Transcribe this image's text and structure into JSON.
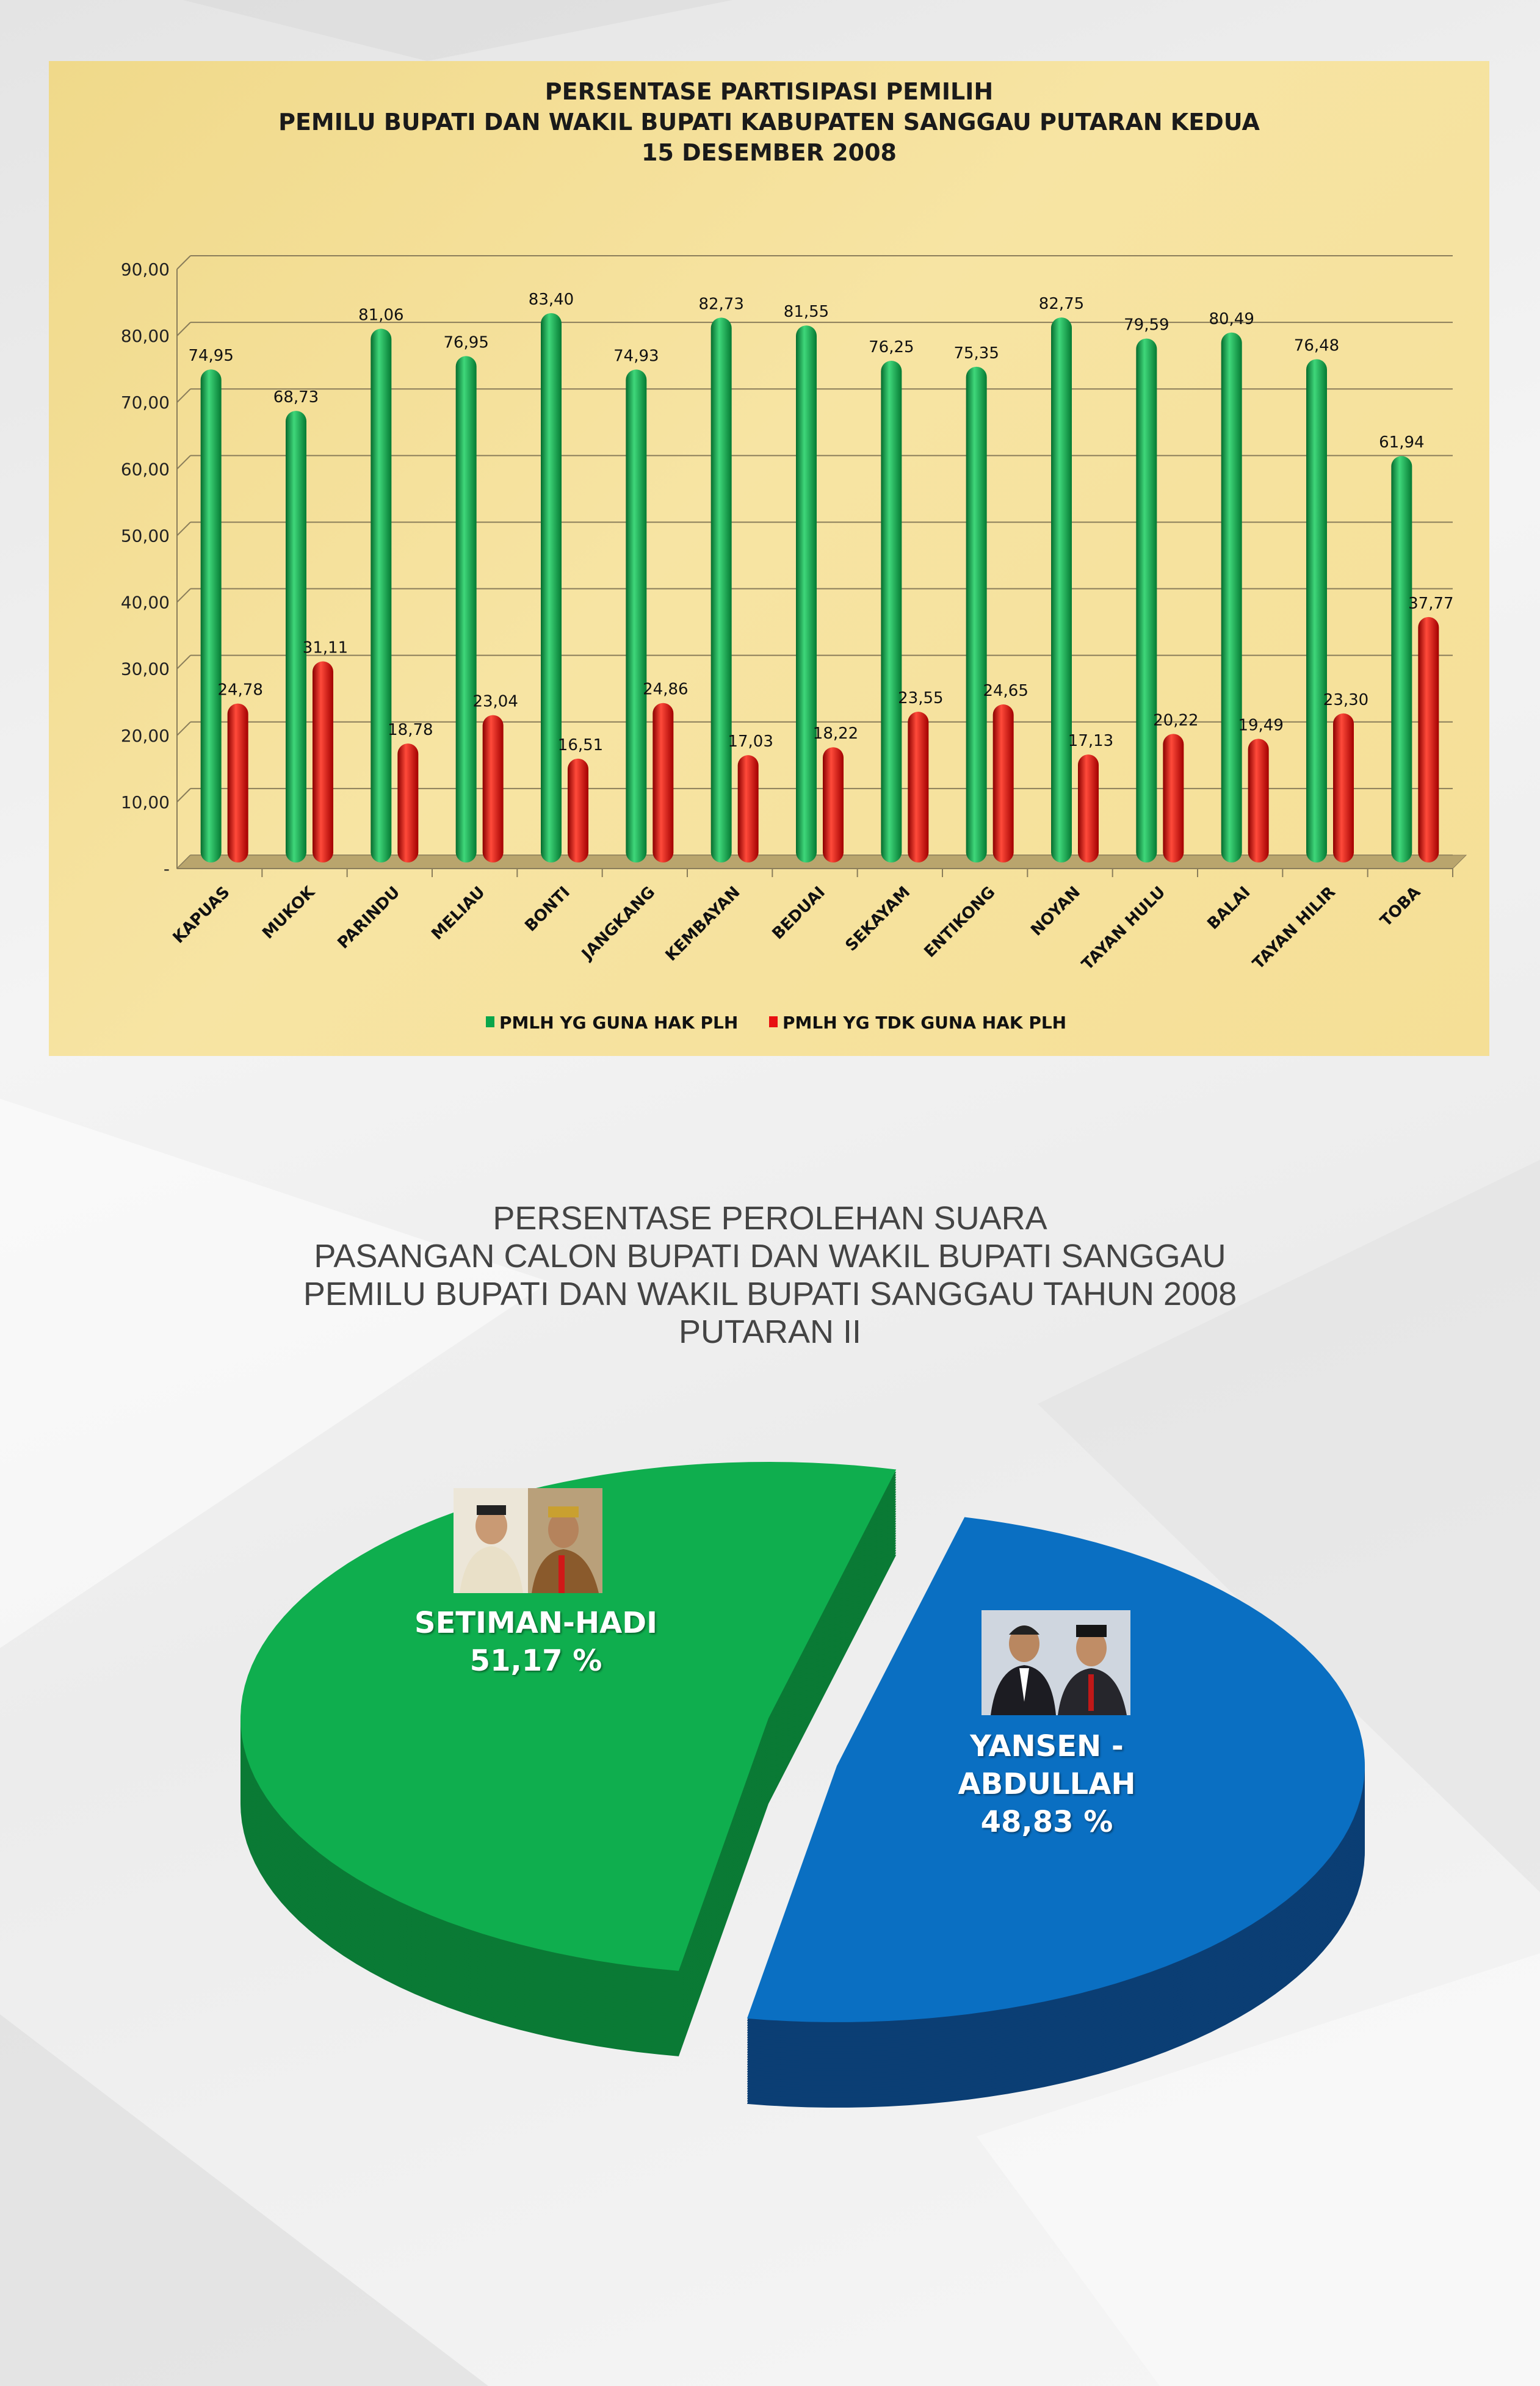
{
  "chart_data": [
    {
      "type": "bar",
      "title": "PERSENTASE PARTISIPASI PEMILIH",
      "subtitle": [
        "PEMILU BUPATI DAN WAKIL BUPATI KABUPATEN SANGGAU PUTARAN KEDUA",
        "15 DESEMBER 2008"
      ],
      "categories": [
        "KAPUAS",
        "MUKOK",
        "PARINDU",
        "MELIAU",
        "BONTI",
        "JANGKANG",
        "KEMBAYAN",
        "BEDUAI",
        "SEKAYAM",
        "ENTIKONG",
        "NOYAN",
        "TAYAN HULU",
        "BALAI",
        "TAYAN HILIR",
        "TOBA"
      ],
      "series": [
        {
          "name": "PMLH YG GUNA HAK PLH",
          "color": "#0aa64a",
          "values": [
            74.95,
            68.73,
            81.06,
            76.95,
            83.4,
            74.93,
            82.73,
            81.55,
            76.25,
            75.35,
            82.75,
            79.59,
            80.49,
            76.48,
            61.94
          ],
          "labels": [
            "74,95",
            "68,73",
            "81,06",
            "76,95",
            "83,40",
            "74,93",
            "82,73",
            "81,55",
            "76,25",
            "75,35",
            "82,75",
            "79,59",
            "80,49",
            "76,48",
            "61,94"
          ]
        },
        {
          "name": "PMLH YG TDK GUNA HAK PLH",
          "color": "#e81010",
          "values": [
            24.78,
            31.11,
            18.78,
            23.04,
            16.51,
            24.86,
            17.03,
            18.22,
            23.55,
            24.65,
            17.13,
            20.22,
            19.49,
            23.3,
            37.77
          ],
          "labels": [
            "24,78",
            "31,11",
            "18,78",
            "23,04",
            "16,51",
            "24,86",
            "17,03",
            "18,22",
            "23,55",
            "24,65",
            "17,13",
            "20,22",
            "19,49",
            "23,30",
            "37,77"
          ]
        }
      ],
      "yticks": [
        "-",
        "10,00",
        "20,00",
        "30,00",
        "40,00",
        "50,00",
        "60,00",
        "70,00",
        "80,00",
        "90,00"
      ],
      "ylim": [
        0,
        90
      ],
      "grid": true,
      "legend_position": "bottom"
    },
    {
      "type": "pie",
      "title_lines": [
        "PERSENTASE PEROLEHAN SUARA",
        "PASANGAN CALON BUPATI DAN WAKIL BUPATI SANGGAU",
        "PEMILU BUPATI DAN WAKIL BUPATI SANGGAU TAHUN 2008",
        "PUTARAN II"
      ],
      "slices": [
        {
          "name_lines": [
            "SETIMAN-HADI"
          ],
          "value": 51.17,
          "label": "51,17 %",
          "color": "#0fae4e"
        },
        {
          "name_lines": [
            "YANSEN -",
            "ABDULLAH"
          ],
          "value": 48.83,
          "label": "48,83 %",
          "color": "#0a6fc2"
        }
      ],
      "style": "3d-exploded"
    }
  ]
}
